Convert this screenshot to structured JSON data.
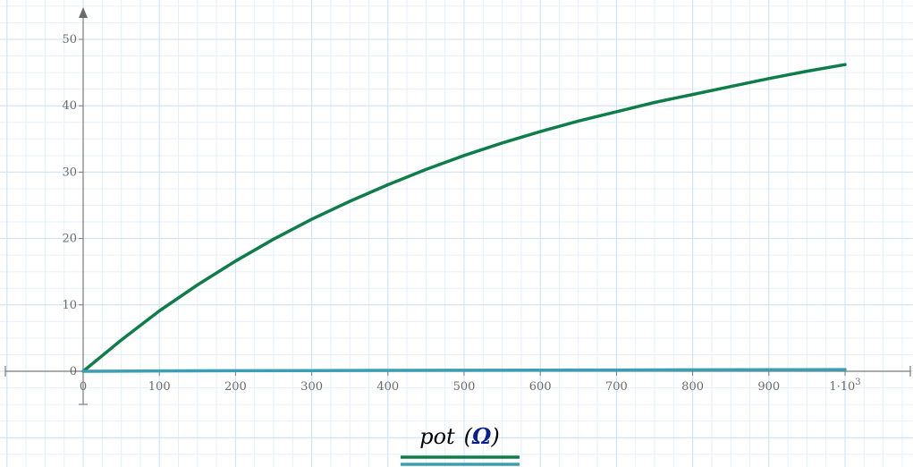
{
  "chart_data": {
    "type": "line",
    "title": "",
    "xlabel_parts": {
      "var": "pot",
      "open": "(",
      "unit": "Ω",
      "close": ")"
    },
    "ylabel": "",
    "xlim": [
      0,
      1000
    ],
    "ylim": [
      0,
      50
    ],
    "x_ticks": [
      0,
      100,
      200,
      300,
      400,
      500,
      600,
      700,
      800,
      900,
      1000
    ],
    "x_tick_labels": [
      "0",
      "100",
      "200",
      "300",
      "400",
      "500",
      "600",
      "700",
      "800",
      "900",
      "1·10"
    ],
    "x_last_tick_exponent": "3",
    "y_ticks": [
      0,
      10,
      20,
      30,
      40,
      50
    ],
    "y_tick_labels": [
      "0",
      "10",
      "20",
      "30",
      "40",
      "50"
    ],
    "grid": true,
    "legend_position": "bottom-center",
    "series": [
      {
        "color": "#0e7d4a",
        "x": [
          0,
          50,
          100,
          150,
          200,
          250,
          300,
          350,
          400,
          450,
          500,
          550,
          600,
          650,
          700,
          750,
          800,
          850,
          900,
          950,
          1000
        ],
        "y": [
          0,
          4.7,
          9.1,
          13.0,
          16.6,
          19.9,
          22.9,
          25.6,
          28.1,
          30.4,
          32.5,
          34.4,
          36.1,
          37.7,
          39.1,
          40.5,
          41.7,
          42.9,
          44.1,
          45.2,
          46.2
        ]
      },
      {
        "color": "#3a9fb5",
        "x": [
          0,
          100,
          200,
          300,
          400,
          500,
          600,
          700,
          800,
          900,
          1000
        ],
        "y": [
          0,
          0.05,
          0.08,
          0.11,
          0.13,
          0.15,
          0.17,
          0.19,
          0.21,
          0.23,
          0.25
        ]
      }
    ]
  }
}
